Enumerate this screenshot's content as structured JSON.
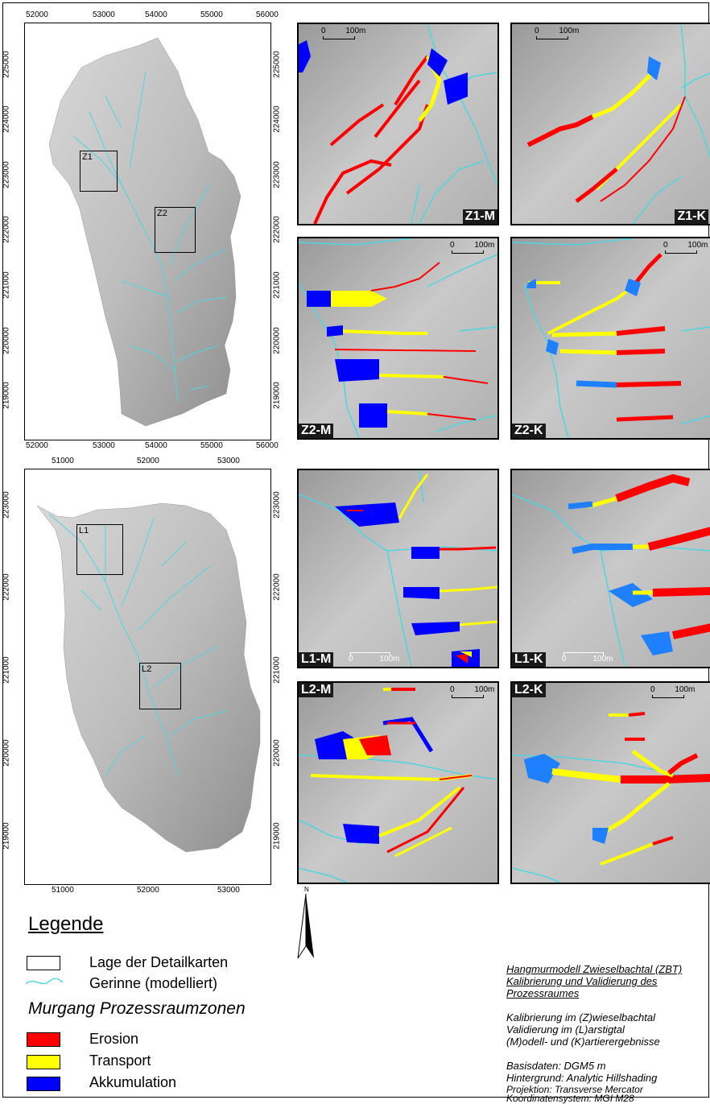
{
  "maps": {
    "zwieselbach": {
      "x_ticks": [
        "52000",
        "53000",
        "54000",
        "55000",
        "56000"
      ],
      "y_ticks": [
        "225000",
        "224000",
        "223000",
        "222000",
        "221000",
        "220000",
        "219000"
      ],
      "boxes": [
        "Z1",
        "Z2"
      ]
    },
    "larstig": {
      "x_ticks": [
        "51000",
        "52000",
        "53000"
      ],
      "y_ticks": [
        "223000",
        "222000",
        "221000",
        "220000",
        "219000"
      ],
      "boxes": [
        "L1",
        "L2"
      ]
    }
  },
  "panels": {
    "z1m": {
      "label": "Z1-M",
      "scale": "100m",
      "zero": "0"
    },
    "z1k": {
      "label": "Z1-K",
      "scale": "100m",
      "zero": "0"
    },
    "z2m": {
      "label": "Z2-M",
      "scale": "100m",
      "zero": "0"
    },
    "z2k": {
      "label": "Z2-K",
      "scale": "100m",
      "zero": "0"
    },
    "l1m": {
      "label": "L1-M",
      "scale": "100m",
      "zero": "0"
    },
    "l1k": {
      "label": "L1-K",
      "scale": "100m",
      "zero": "0"
    },
    "l2m": {
      "label": "L2-M",
      "scale": "100m",
      "zero": "0"
    },
    "l2k": {
      "label": "L2-K",
      "scale": "100m",
      "zero": "0"
    }
  },
  "north": "N",
  "legend": {
    "title": "Legende",
    "items": [
      "Lage der Detailkarten",
      "Gerinne (modelliert)"
    ],
    "zones_title": "Murgang Prozessraumzonen",
    "zones": [
      {
        "label": "Erosion",
        "color": "#ff0000"
      },
      {
        "label": "Transport",
        "color": "#ffff00"
      },
      {
        "label": "Akkumulation",
        "color": "#0000ff"
      }
    ]
  },
  "info": {
    "title_lines": [
      "Hangmurmodell Zwieselbachtal (ZBT)",
      "Kalibrierung und Validierung des",
      "Prozessraumes"
    ],
    "desc_lines": [
      "Kalibrierung im (Z)wieselbachtal",
      "Validierung im (L)arstigtal",
      "(M)odell- und (K)artierergebnisse"
    ],
    "data_lines": [
      "Basisdaten: DGM5 m",
      "Hintergrund: Analytic Hillshading",
      "Projektion: Transverse Mercator",
      "Koordinatensystem: MGI M28"
    ]
  },
  "colors": {
    "river": "#4ed6e0",
    "erosion": "#ff0000",
    "transport": "#ffff00",
    "accumulation": "#0000ff",
    "accumulation_mapped": "#1e7fff"
  }
}
